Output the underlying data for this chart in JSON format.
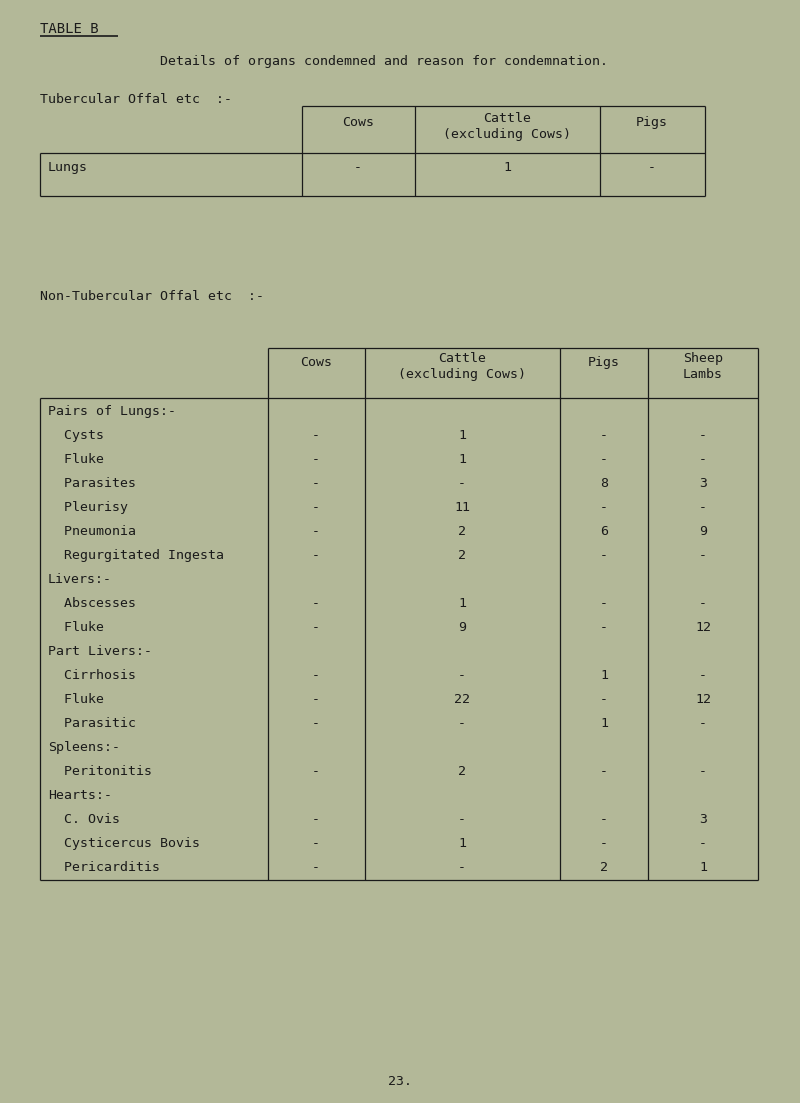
{
  "bg_color": "#b3b898",
  "text_color": "#1a1a1a",
  "title": "TABLE B",
  "subtitle": "Details of organs condemned and reason for condemnation.",
  "section1_label": "Tubercular Offal etc  :-",
  "section2_label": "Non-Tubercular Offal etc  :-",
  "page_number": "23.",
  "font_family": "DejaVu Sans Mono",
  "table1": {
    "col_headers": [
      "Cows",
      "Cattle\n(excluding Cows)",
      "Pigs"
    ],
    "rows": [
      [
        "Lungs",
        "-",
        "1",
        "-"
      ]
    ]
  },
  "table2": {
    "col_headers": [
      "Cows",
      "Cattle\n(excluding Cows)",
      "Pigs",
      "Sheep\nLambs"
    ],
    "rows": [
      [
        "Pairs of Lungs:-",
        "",
        "",
        "",
        ""
      ],
      [
        "  Cysts",
        "-",
        "1",
        "-",
        "-"
      ],
      [
        "  Fluke",
        "-",
        "1",
        "-",
        "-"
      ],
      [
        "  Parasites",
        "-",
        "-",
        "8",
        "3"
      ],
      [
        "  Pleurisy",
        "-",
        "11",
        "-",
        "-"
      ],
      [
        "  Pneumonia",
        "-",
        "2",
        "6",
        "9"
      ],
      [
        "  Regurgitated Ingesta",
        "-",
        "2",
        "-",
        "-"
      ],
      [
        "Livers:-",
        "",
        "",
        "",
        ""
      ],
      [
        "  Abscesses",
        "-",
        "1",
        "-",
        "-"
      ],
      [
        "  Fluke",
        "-",
        "9",
        "-",
        "12"
      ],
      [
        "Part Livers:-",
        "",
        "",
        "",
        ""
      ],
      [
        "  Cirrhosis",
        "-",
        "-",
        "1",
        "-"
      ],
      [
        "  Fluke",
        "-",
        "22",
        "-",
        "12"
      ],
      [
        "  Parasitic",
        "-",
        "-",
        "1",
        "-"
      ],
      [
        "Spleens:-",
        "",
        "",
        "",
        ""
      ],
      [
        "  Peritonitis",
        "-",
        "2",
        "-",
        "-"
      ],
      [
        "Hearts:-",
        "",
        "",
        "",
        ""
      ],
      [
        "  C. Ovis",
        "-",
        "-",
        "-",
        "3"
      ],
      [
        "  Cysticercus Bovis",
        "-",
        "1",
        "-",
        "-"
      ],
      [
        "  Pericarditis",
        "-",
        "-",
        "2",
        "1"
      ]
    ]
  }
}
